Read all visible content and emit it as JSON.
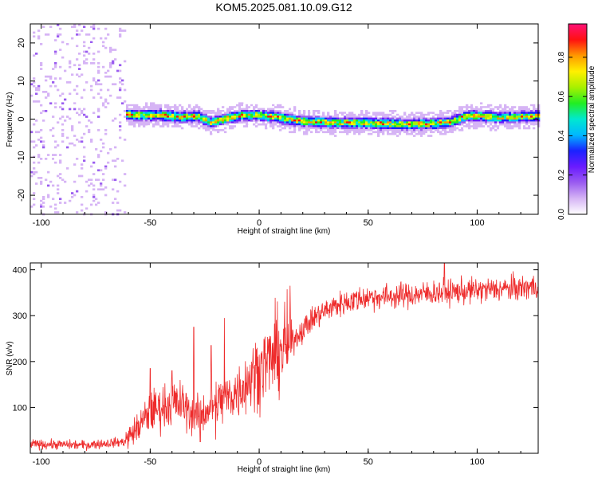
{
  "figure_title": "KOM5.2025.081.10.09.G12",
  "colors": {
    "snr_line": "#ee2b2b",
    "spectrum_scale": [
      "#ffffff",
      "#d6b4f5",
      "#9a5cf0",
      "#6a1bff",
      "#1a22ff",
      "#00b8ff",
      "#00e8d0",
      "#22ee22",
      "#a8f000",
      "#fff000",
      "#ff9900",
      "#ff1111",
      "#ff1177"
    ]
  },
  "chart_data": [
    {
      "type": "heatmap",
      "xlabel": "Height of straight line (km)",
      "ylabel": "Frequency (Hz)",
      "xlim": [
        -105,
        128
      ],
      "ylim": [
        -25,
        25
      ],
      "xticks": [
        "-100",
        "-50",
        "0",
        "50",
        "100"
      ],
      "xtick_values": [
        -100,
        -50,
        0,
        50,
        100
      ],
      "yticks": [
        "-20",
        "-10",
        "0",
        "10",
        "20"
      ],
      "ytick_values": [
        -20,
        -10,
        0,
        10,
        20
      ],
      "colorbar": {
        "label": "Normalized spectral amplitude",
        "range": [
          0,
          0.97
        ],
        "ticks": [
          "0.0",
          "0.2",
          "0.4",
          "0.6",
          "0.8"
        ],
        "tick_values": [
          0.0,
          0.2,
          0.4,
          0.6,
          0.8
        ]
      },
      "noise_region": {
        "x_range": [
          -105,
          -61
        ],
        "amplitude": 0.06
      },
      "ridge": {
        "description_points_x_km": [
          -62,
          -55,
          -45,
          -35,
          -28,
          -22,
          -15,
          -8,
          0,
          8,
          18,
          28,
          38,
          48,
          58,
          68,
          78,
          88,
          95,
          102,
          110,
          118,
          128
        ],
        "frequency_hz": [
          1.2,
          1.0,
          1.0,
          0.5,
          0.8,
          -1.0,
          0.2,
          1.0,
          1.0,
          0.5,
          -0.5,
          -0.8,
          -1.0,
          -1.0,
          -1.2,
          -1.4,
          -1.2,
          -0.8,
          0.8,
          0.8,
          0.3,
          0.5,
          0.8
        ],
        "peak_amplitude": 0.95,
        "width_hz": 1.4
      }
    },
    {
      "type": "line",
      "xlabel": "Height of straight line (km)",
      "ylabel": "SNR (v/v)",
      "xlim": [
        -105,
        128
      ],
      "ylim": [
        0,
        415
      ],
      "xticks": [
        "-100",
        "-50",
        "0",
        "50",
        "100"
      ],
      "xtick_values": [
        -100,
        -50,
        0,
        50,
        100
      ],
      "yticks": [
        "100",
        "200",
        "300",
        "400"
      ],
      "ytick_values": [
        100,
        200,
        300,
        400
      ],
      "trend": {
        "x": [
          -105,
          -80,
          -62,
          -55,
          -50,
          -45,
          -40,
          -35,
          -30,
          -25,
          -20,
          -15,
          -10,
          -5,
          0,
          5,
          10,
          15,
          20,
          25,
          30,
          35,
          40,
          45,
          50,
          60,
          70,
          80,
          90,
          100,
          110,
          120,
          128
        ],
        "y": [
          20,
          18,
          25,
          60,
          90,
          100,
          110,
          105,
          80,
          90,
          110,
          120,
          135,
          160,
          185,
          205,
          225,
          245,
          270,
          295,
          310,
          322,
          330,
          336,
          340,
          342,
          345,
          350,
          352,
          355,
          358,
          360,
          365
        ]
      },
      "spikes": [
        {
          "x": -50,
          "y": 185
        },
        {
          "x": -40,
          "y": 180
        },
        {
          "x": -30,
          "y": 275
        },
        {
          "x": -27,
          "y": 25
        },
        {
          "x": -22,
          "y": 235
        },
        {
          "x": -20,
          "y": 30
        },
        {
          "x": -16,
          "y": 295
        },
        {
          "x": 85,
          "y": 420
        }
      ]
    }
  ]
}
